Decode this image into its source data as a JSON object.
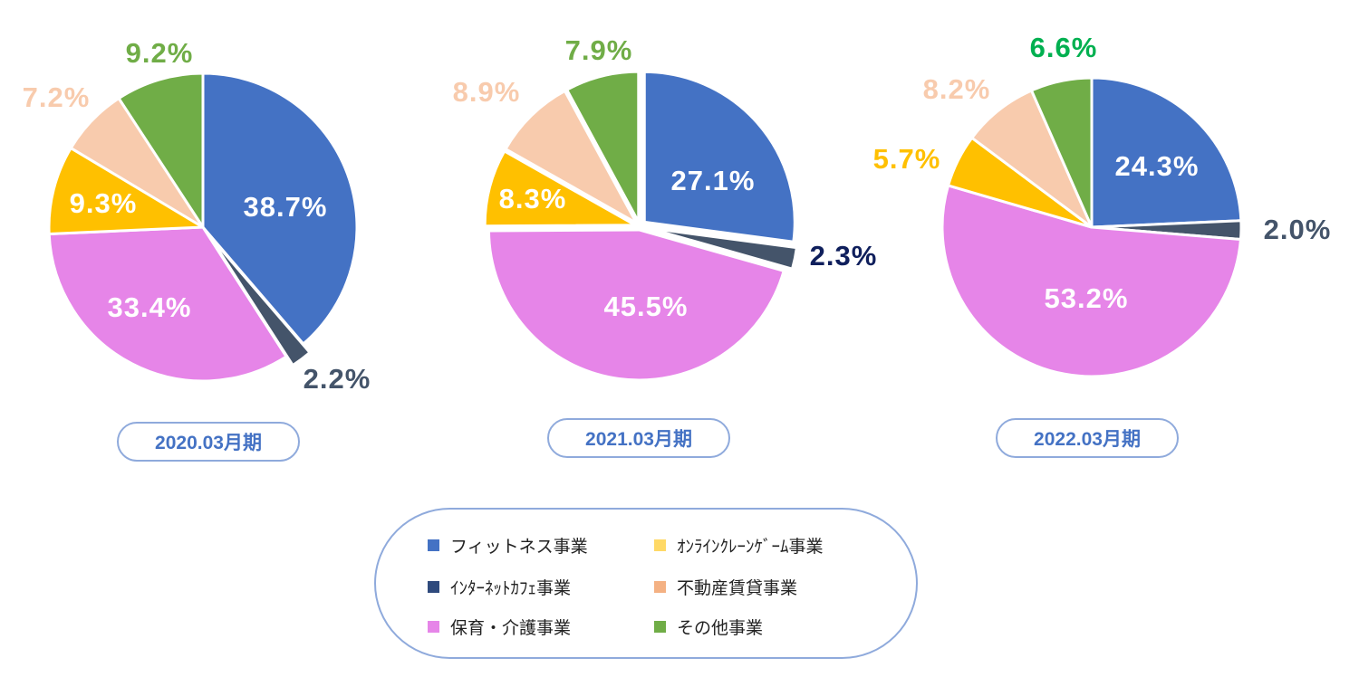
{
  "chart_data": [
    {
      "type": "pie",
      "title": "2020.03月期",
      "slices": [
        {
          "category": "フィットネス事業",
          "value": 38.7,
          "label": "38.7%",
          "color": "#4472c4"
        },
        {
          "category": "インターネットカフェ事業",
          "value": 2.2,
          "label": "2.2%",
          "color": "#44546a"
        },
        {
          "category": "保育・介護事業",
          "value": 33.4,
          "label": "33.4%",
          "color": "#e685e8"
        },
        {
          "category": "オンラインクレーンゲーム事業",
          "value": 9.3,
          "label": "9.3%",
          "color": "#ffc000"
        },
        {
          "category": "不動産賃貸事業",
          "value": 7.2,
          "label": "7.2%",
          "color": "#f8cbad"
        },
        {
          "category": "その他事業",
          "value": 9.2,
          "label": "9.2%",
          "color": "#70ad47"
        }
      ]
    },
    {
      "type": "pie",
      "title": "2021.03月期",
      "slices": [
        {
          "category": "フィットネス事業",
          "value": 27.1,
          "label": "27.1%",
          "color": "#4472c4"
        },
        {
          "category": "インターネットカフェ事業",
          "value": 2.3,
          "label": "2.3%",
          "color": "#44546a"
        },
        {
          "category": "保育・介護事業",
          "value": 45.5,
          "label": "45.5%",
          "color": "#e685e8"
        },
        {
          "category": "オンラインクレーンゲーム事業",
          "value": 8.3,
          "label": "8.3%",
          "color": "#ffc000"
        },
        {
          "category": "不動産賃貸事業",
          "value": 8.9,
          "label": "8.9%",
          "color": "#f8cbad"
        },
        {
          "category": "その他事業",
          "value": 7.9,
          "label": "7.9%",
          "color": "#70ad47"
        }
      ]
    },
    {
      "type": "pie",
      "title": "2022.03月期",
      "slices": [
        {
          "category": "フィットネス事業",
          "value": 24.3,
          "label": "24.3%",
          "color": "#4472c4"
        },
        {
          "category": "インターネットカフェ事業",
          "value": 2.0,
          "label": "2.0%",
          "color": "#44546a"
        },
        {
          "category": "保育・介護事業",
          "value": 53.2,
          "label": "53.2%",
          "color": "#e685e8"
        },
        {
          "category": "オンラインクレーンゲーム事業",
          "value": 5.7,
          "label": "5.7%",
          "color": "#ffc000"
        },
        {
          "category": "不動産賃貸事業",
          "value": 8.2,
          "label": "8.2%",
          "color": "#f8cbad"
        },
        {
          "category": "その他事業",
          "value": 6.6,
          "label": "6.6%",
          "color": "#70ad47"
        }
      ]
    }
  ],
  "legend": {
    "placement": "bottom",
    "items": [
      {
        "label": "フィットネス事業",
        "color": "#4472c4"
      },
      {
        "label": "ｵﾝﾗｲﾝｸﾚｰﾝｹﾞｰﾑ事業",
        "color": "#ffd966"
      },
      {
        "label": "ｲﾝﾀｰﾈｯﾄｶﾌｪ事業",
        "color": "#2f4a7d"
      },
      {
        "label": "不動産賃貸事業",
        "color": "#f4b183"
      },
      {
        "label": "保育・介護事業",
        "color": "#e685e8"
      },
      {
        "label": "その他事業",
        "color": "#70ad47"
      }
    ]
  },
  "label_colors": {
    "inside": "#ffffff",
    "internet_cafe_outside": [
      "#44546a",
      "#0f1f5c",
      "#44546a"
    ],
    "crane_outside": "#ffc000",
    "real_estate_outside": "#f8cbad",
    "other_outside": [
      "#70ad47",
      "#70ad47",
      "#00b050"
    ]
  }
}
